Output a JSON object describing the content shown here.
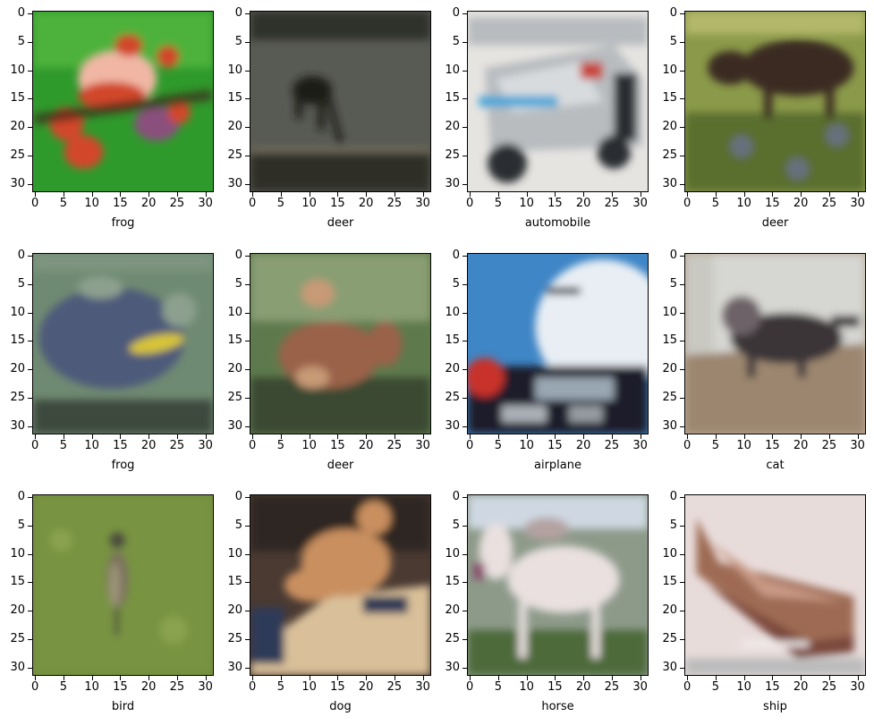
{
  "figure": {
    "ticks": [
      "0",
      "5",
      "10",
      "15",
      "20",
      "25",
      "30"
    ],
    "panels": [
      {
        "label": "frog",
        "subject": "frog",
        "colors": {
          "bg": "#2f9a2c",
          "a": "#5fc246",
          "b": "#d2472a",
          "c": "#f1b7a4",
          "d": "#8a4f7d"
        }
      },
      {
        "label": "deer",
        "subject": "deer",
        "colors": {
          "bg": "#585a54",
          "a": "#3f413b",
          "b": "#1b1d19",
          "c": "#6f6b5a",
          "d": "#2d2f28"
        }
      },
      {
        "label": "automobile",
        "subject": "automobile",
        "colors": {
          "bg": "#e6e4e1",
          "a": "#b8bcbf",
          "b": "#2b2f33",
          "c": "#4aa7d8",
          "d": "#c9473e"
        }
      },
      {
        "label": "deer",
        "subject": "moose",
        "colors": {
          "bg": "#8b9a4a",
          "a": "#b3b86a",
          "b": "#3a2a24",
          "c": "#6b6fa0",
          "d": "#5a6e2e"
        }
      },
      {
        "label": "frog",
        "subject": "frog2",
        "colors": {
          "bg": "#6f8a72",
          "a": "#8da08f",
          "b": "#4e5a7a",
          "c": "#d8c535",
          "d": "#3d4a3e"
        }
      },
      {
        "label": "deer",
        "subject": "deer2",
        "colors": {
          "bg": "#5e7a4c",
          "a": "#a7b58e",
          "b": "#9a6248",
          "c": "#c89a76",
          "d": "#3b4a30"
        }
      },
      {
        "label": "airplane",
        "subject": "airplane",
        "colors": {
          "bg": "#3f86c6",
          "a": "#e8eef4",
          "b": "#1a1f2a",
          "c": "#c8302a",
          "d": "#9aa7b3"
        }
      },
      {
        "label": "cat",
        "subject": "cat",
        "colors": {
          "bg": "#b9ab97",
          "a": "#d6d6d2",
          "b": "#3a3438",
          "c": "#9c8670",
          "d": "#6d6268"
        }
      },
      {
        "label": "bird",
        "subject": "bird",
        "colors": {
          "bg": "#6f8a3a",
          "a": "#8aa34f",
          "b": "#7c705e",
          "c": "#4c4a3c",
          "d": "#9d9478"
        }
      },
      {
        "label": "dog",
        "subject": "dog",
        "colors": {
          "bg": "#4a3a32",
          "a": "#c98f5f",
          "b": "#d9c09a",
          "c": "#2f3b58",
          "d": "#7a5a48"
        }
      },
      {
        "label": "horse",
        "subject": "horse",
        "colors": {
          "bg": "#8d9a8a",
          "a": "#e9e0df",
          "b": "#b3a2a0",
          "c": "#4e6b3a",
          "d": "#cfd8e2"
        }
      },
      {
        "label": "ship",
        "subject": "ship",
        "colors": {
          "bg": "#e8dcdb",
          "a": "#9e6a52",
          "b": "#c99a86",
          "c": "#7c4a3c",
          "d": "#f3eeee"
        }
      }
    ]
  }
}
